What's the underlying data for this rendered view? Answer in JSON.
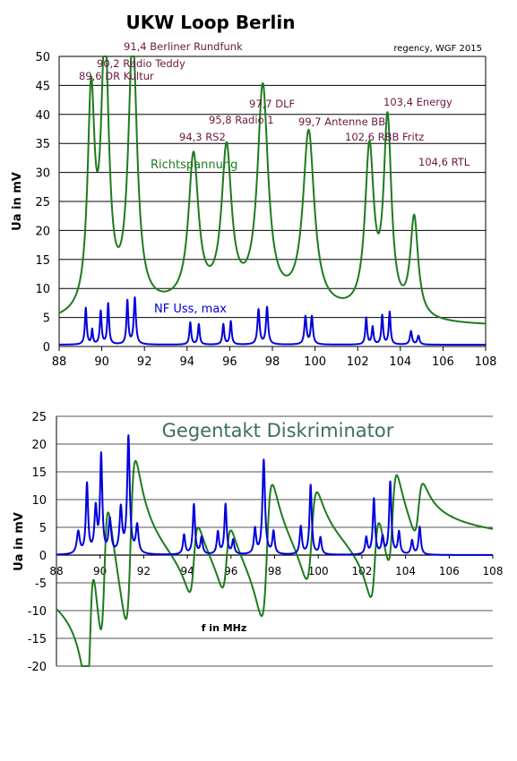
{
  "chart_data": [
    {
      "type": "line",
      "title": "UKW Loop Berlin",
      "credit": "regency, WGF 2015",
      "xlabel": "",
      "ylabel": "Ua in mV",
      "xlim": [
        88,
        108
      ],
      "ylim": [
        0,
        50
      ],
      "xticks": [
        "88",
        "90",
        "92",
        "94",
        "96",
        "98",
        "100",
        "102",
        "104",
        "106",
        "108"
      ],
      "yticks": [
        "0",
        "5",
        "10",
        "15",
        "20",
        "25",
        "30",
        "35",
        "40",
        "45",
        "50"
      ],
      "grid": "horizontal",
      "colors": {
        "Richtspannung": "#1e7b1e",
        "NF Uss, max": "#0000dd",
        "annotations": "#6b1740"
      },
      "annotations": [
        {
          "text": "91,4 Berliner Rundfunk",
          "x": 91.4
        },
        {
          "text": "90,2 Radio Teddy",
          "x": 90.2
        },
        {
          "text": "89,6 DR Kultur",
          "x": 89.6
        },
        {
          "text": "97,7 DLF",
          "x": 97.7
        },
        {
          "text": "103,4 Energy",
          "x": 103.4
        },
        {
          "text": "95,8 Radio 1",
          "x": 95.8
        },
        {
          "text": "99,7 Antenne BB",
          "x": 99.7
        },
        {
          "text": "94,3 RS2",
          "x": 94.3
        },
        {
          "text": "102,6 RBB Fritz",
          "x": 102.6
        },
        {
          "text": "104,6 RTL",
          "x": 104.6
        }
      ],
      "series": [
        {
          "name": "Richtspannung",
          "baseline": 3.5,
          "peaks": [
            {
              "x": 89.5,
              "y": 36.0,
              "w": 0.2
            },
            {
              "x": 90.15,
              "y": 45.5,
              "w": 0.22
            },
            {
              "x": 91.45,
              "y": 46.0,
              "w": 0.25
            },
            {
              "x": 94.3,
              "y": 25.0,
              "w": 0.28
            },
            {
              "x": 95.85,
              "y": 25.8,
              "w": 0.28
            },
            {
              "x": 97.55,
              "y": 36.8,
              "w": 0.3
            },
            {
              "x": 99.7,
              "y": 30.0,
              "w": 0.32
            },
            {
              "x": 102.55,
              "y": 27.8,
              "w": 0.25
            },
            {
              "x": 103.4,
              "y": 32.8,
              "w": 0.22
            },
            {
              "x": 104.65,
              "y": 17.0,
              "w": 0.22
            }
          ]
        },
        {
          "name": "NF Uss, max",
          "baseline": 0.3,
          "peaks": [
            {
              "x": 89.25,
              "y": 6.3,
              "w": 0.05
            },
            {
              "x": 89.55,
              "y": 2.5,
              "w": 0.04
            },
            {
              "x": 89.95,
              "y": 5.7,
              "w": 0.05
            },
            {
              "x": 90.3,
              "y": 7.0,
              "w": 0.05
            },
            {
              "x": 91.2,
              "y": 7.5,
              "w": 0.05
            },
            {
              "x": 91.55,
              "y": 8.0,
              "w": 0.06
            },
            {
              "x": 94.15,
              "y": 3.8,
              "w": 0.05
            },
            {
              "x": 94.55,
              "y": 3.5,
              "w": 0.05
            },
            {
              "x": 95.7,
              "y": 3.5,
              "w": 0.05
            },
            {
              "x": 96.05,
              "y": 4.0,
              "w": 0.05
            },
            {
              "x": 97.35,
              "y": 6.0,
              "w": 0.06
            },
            {
              "x": 97.75,
              "y": 6.4,
              "w": 0.06
            },
            {
              "x": 99.55,
              "y": 4.8,
              "w": 0.06
            },
            {
              "x": 99.85,
              "y": 4.8,
              "w": 0.06
            },
            {
              "x": 102.4,
              "y": 4.6,
              "w": 0.05
            },
            {
              "x": 102.7,
              "y": 3.0,
              "w": 0.05
            },
            {
              "x": 103.15,
              "y": 5.0,
              "w": 0.05
            },
            {
              "x": 103.5,
              "y": 5.6,
              "w": 0.05
            },
            {
              "x": 104.5,
              "y": 2.3,
              "w": 0.06
            },
            {
              "x": 104.85,
              "y": 1.5,
              "w": 0.06
            }
          ]
        }
      ]
    },
    {
      "type": "line",
      "title": "Gegentakt Diskriminator",
      "xlabel": "f in MHz",
      "ylabel": "Ua in mV",
      "xlim": [
        88,
        108
      ],
      "ylim": [
        -20,
        25
      ],
      "xticks": [
        "88",
        "90",
        "92",
        "94",
        "96",
        "98",
        "100",
        "102",
        "104",
        "106",
        "108"
      ],
      "yticks": [
        "-20",
        "-15",
        "-10",
        "-5",
        "0",
        "5",
        "10",
        "15",
        "20",
        "25"
      ],
      "grid": "horizontal",
      "colors": {
        "green": "#1e7b1e",
        "blue": "#0000dd"
      },
      "series": [
        {
          "name": "",
          "color": "green",
          "kind": "dispersion",
          "stations": [
            {
              "x": 89.55,
              "amp": 12.0,
              "w": 0.18
            },
            {
              "x": 90.2,
              "amp": 13.0,
              "w": 0.2
            },
            {
              "x": 91.4,
              "amp": 15.5,
              "w": 0.24
            },
            {
              "x": 94.3,
              "amp": 6.5,
              "w": 0.22
            },
            {
              "x": 95.8,
              "amp": 6.0,
              "w": 0.22
            },
            {
              "x": 97.65,
              "amp": 12.5,
              "w": 0.26
            },
            {
              "x": 99.7,
              "amp": 8.5,
              "w": 0.26
            },
            {
              "x": 102.6,
              "amp": 8.0,
              "w": 0.22
            },
            {
              "x": 103.4,
              "amp": 9.0,
              "w": 0.22
            },
            {
              "x": 104.6,
              "amp": 5.0,
              "w": 0.22
            }
          ]
        },
        {
          "name": "",
          "color": "blue",
          "kind": "peaks",
          "baseline": 0.0,
          "peaks": [
            {
              "x": 89.0,
              "y": 4.0,
              "w": 0.08
            },
            {
              "x": 89.4,
              "y": 12.5,
              "w": 0.06
            },
            {
              "x": 89.8,
              "y": 8.0,
              "w": 0.07
            },
            {
              "x": 90.05,
              "y": 17.5,
              "w": 0.06
            },
            {
              "x": 90.45,
              "y": 6.0,
              "w": 0.07
            },
            {
              "x": 90.95,
              "y": 8.0,
              "w": 0.07
            },
            {
              "x": 91.3,
              "y": 21.0,
              "w": 0.07
            },
            {
              "x": 91.7,
              "y": 5.0,
              "w": 0.07
            },
            {
              "x": 93.85,
              "y": 3.5,
              "w": 0.06
            },
            {
              "x": 94.3,
              "y": 9.0,
              "w": 0.06
            },
            {
              "x": 94.65,
              "y": 3.0,
              "w": 0.06
            },
            {
              "x": 95.4,
              "y": 4.0,
              "w": 0.06
            },
            {
              "x": 95.75,
              "y": 9.0,
              "w": 0.06
            },
            {
              "x": 96.1,
              "y": 2.5,
              "w": 0.06
            },
            {
              "x": 97.1,
              "y": 4.5,
              "w": 0.06
            },
            {
              "x": 97.5,
              "y": 17.0,
              "w": 0.07
            },
            {
              "x": 97.95,
              "y": 4.0,
              "w": 0.06
            },
            {
              "x": 99.2,
              "y": 5.0,
              "w": 0.06
            },
            {
              "x": 99.65,
              "y": 12.5,
              "w": 0.06
            },
            {
              "x": 100.1,
              "y": 3.0,
              "w": 0.06
            },
            {
              "x": 102.2,
              "y": 3.0,
              "w": 0.06
            },
            {
              "x": 102.55,
              "y": 10.0,
              "w": 0.06
            },
            {
              "x": 102.95,
              "y": 3.0,
              "w": 0.06
            },
            {
              "x": 103.3,
              "y": 13.0,
              "w": 0.06
            },
            {
              "x": 103.7,
              "y": 4.0,
              "w": 0.06
            },
            {
              "x": 104.3,
              "y": 2.5,
              "w": 0.06
            },
            {
              "x": 104.65,
              "y": 5.0,
              "w": 0.06
            }
          ]
        }
      ]
    }
  ]
}
